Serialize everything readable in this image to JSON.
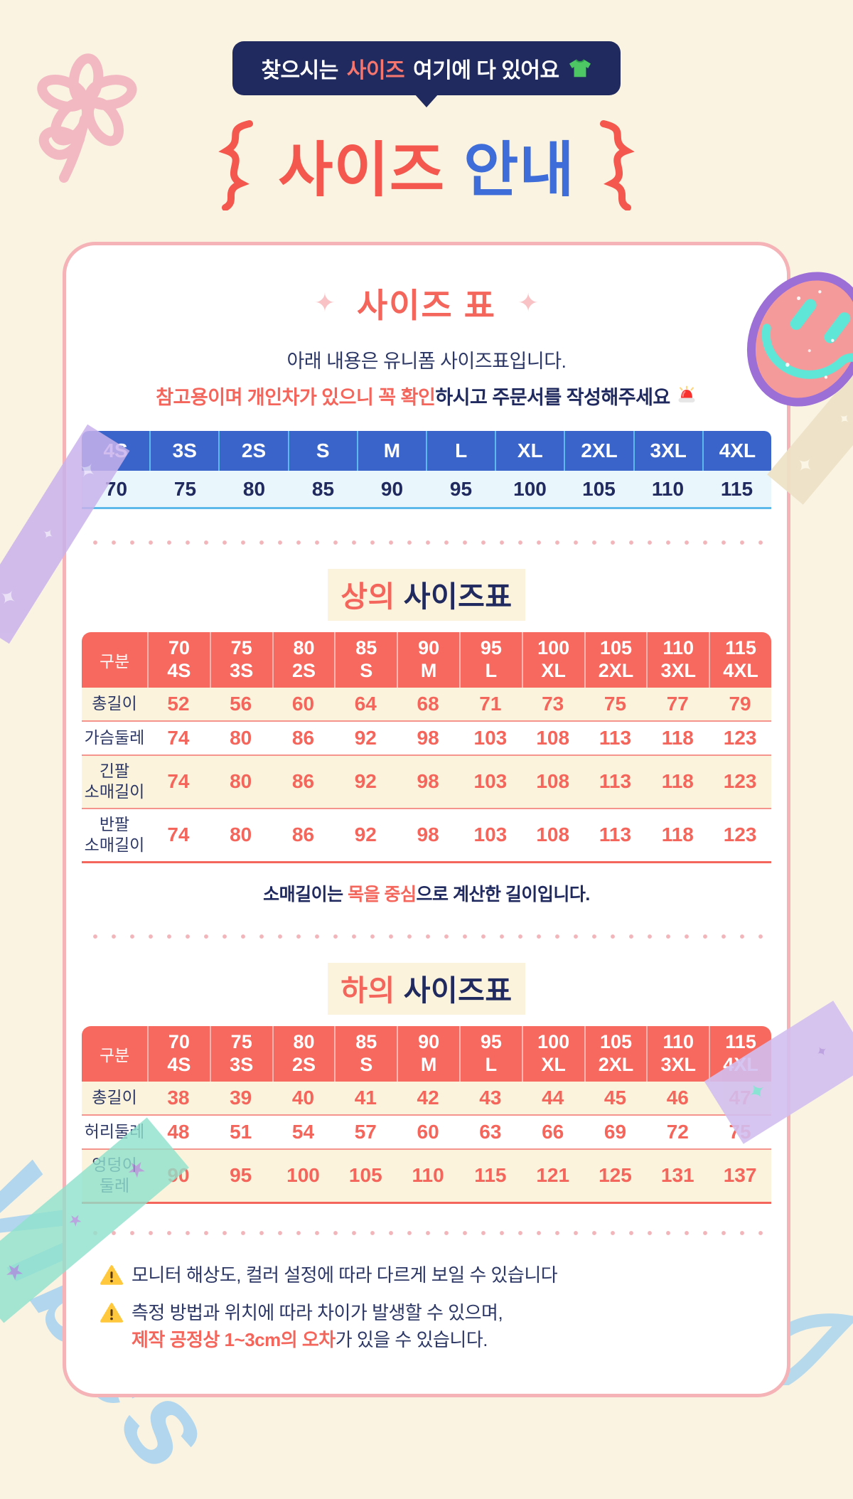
{
  "header": {
    "badge": {
      "pre": "찾으시는 ",
      "highlight": "사이즈",
      "post": " 여기에 다 있어요",
      "icon": "tshirt-icon"
    },
    "title": {
      "highlight": "사이즈",
      "rest": "안내"
    }
  },
  "card": {
    "intro": {
      "sparkle": "✦",
      "title": "사이즈 표",
      "line1": "아래 내용은 유니폼 사이즈표입니다.",
      "line2_highlight": "참고용이며 개인차가 있으니 꼭 확인",
      "line2_rest": "하시고 주문서를 작성해주세요",
      "line2_icon": "siren-icon"
    },
    "quick_table": {
      "sizes": [
        "4S",
        "3S",
        "2S",
        "S",
        "M",
        "L",
        "XL",
        "2XL",
        "3XL",
        "4XL"
      ],
      "numbers": [
        "70",
        "75",
        "80",
        "85",
        "90",
        "95",
        "100",
        "105",
        "110",
        "115"
      ]
    },
    "corner_label": "구분",
    "columns": [
      {
        "num": "70",
        "size": "4S"
      },
      {
        "num": "75",
        "size": "3S"
      },
      {
        "num": "80",
        "size": "2S"
      },
      {
        "num": "85",
        "size": "S"
      },
      {
        "num": "90",
        "size": "M"
      },
      {
        "num": "95",
        "size": "L"
      },
      {
        "num": "100",
        "size": "XL"
      },
      {
        "num": "105",
        "size": "2XL"
      },
      {
        "num": "110",
        "size": "3XL"
      },
      {
        "num": "115",
        "size": "4XL"
      }
    ],
    "top_table": {
      "title_highlight": "상의",
      "title_rest": " 사이즈표",
      "rows": [
        {
          "label": "총길이",
          "values": [
            "52",
            "56",
            "60",
            "64",
            "68",
            "71",
            "73",
            "75",
            "77",
            "79"
          ]
        },
        {
          "label": "가슴둘레",
          "values": [
            "74",
            "80",
            "86",
            "92",
            "98",
            "103",
            "108",
            "113",
            "118",
            "123"
          ]
        },
        {
          "label": "긴팔\n소매길이",
          "values": [
            "74",
            "80",
            "86",
            "92",
            "98",
            "103",
            "108",
            "113",
            "118",
            "123"
          ]
        },
        {
          "label": "반팔\n소매길이",
          "values": [
            "74",
            "80",
            "86",
            "92",
            "98",
            "103",
            "108",
            "113",
            "118",
            "123"
          ]
        }
      ],
      "note_pre": "소매길이는 ",
      "note_highlight": "목을 중심",
      "note_post": "으로 계산한 길이입니다."
    },
    "bottom_table": {
      "title_highlight": "하의",
      "title_rest": " 사이즈표",
      "rows": [
        {
          "label": "총길이",
          "values": [
            "38",
            "39",
            "40",
            "41",
            "42",
            "43",
            "44",
            "45",
            "46",
            "47"
          ]
        },
        {
          "label": "허리둘레",
          "values": [
            "48",
            "51",
            "54",
            "57",
            "60",
            "63",
            "66",
            "69",
            "72",
            "75"
          ]
        },
        {
          "label": "엉덩이\n둘레",
          "values": [
            "90",
            "95",
            "100",
            "105",
            "110",
            "115",
            "121",
            "125",
            "131",
            "137"
          ]
        }
      ]
    },
    "warnings": [
      {
        "icon": "warning-icon",
        "line1": "모니터 해상도, 컬러 설정에 따라 다르게 보일 수 있습니다"
      },
      {
        "icon": "warning-icon",
        "line1": "측정 방법과 위치에 따라 차이가 발생할 수 있으며,",
        "line2_highlight": "제작 공정상 1~3cm의 오차",
        "line2_rest": "가 있을 수 있습니다."
      }
    ]
  },
  "colors": {
    "background": "#FAF3E2",
    "navy": "#212A5E",
    "coral": "#F4655C",
    "blue": "#3E6CD9",
    "table_blue": "#3A64C9",
    "table_coral": "#F7695F",
    "light_blue": "#5CB9E9",
    "cream_row": "#FBF3DB",
    "card_border": "#F5B2B7"
  }
}
